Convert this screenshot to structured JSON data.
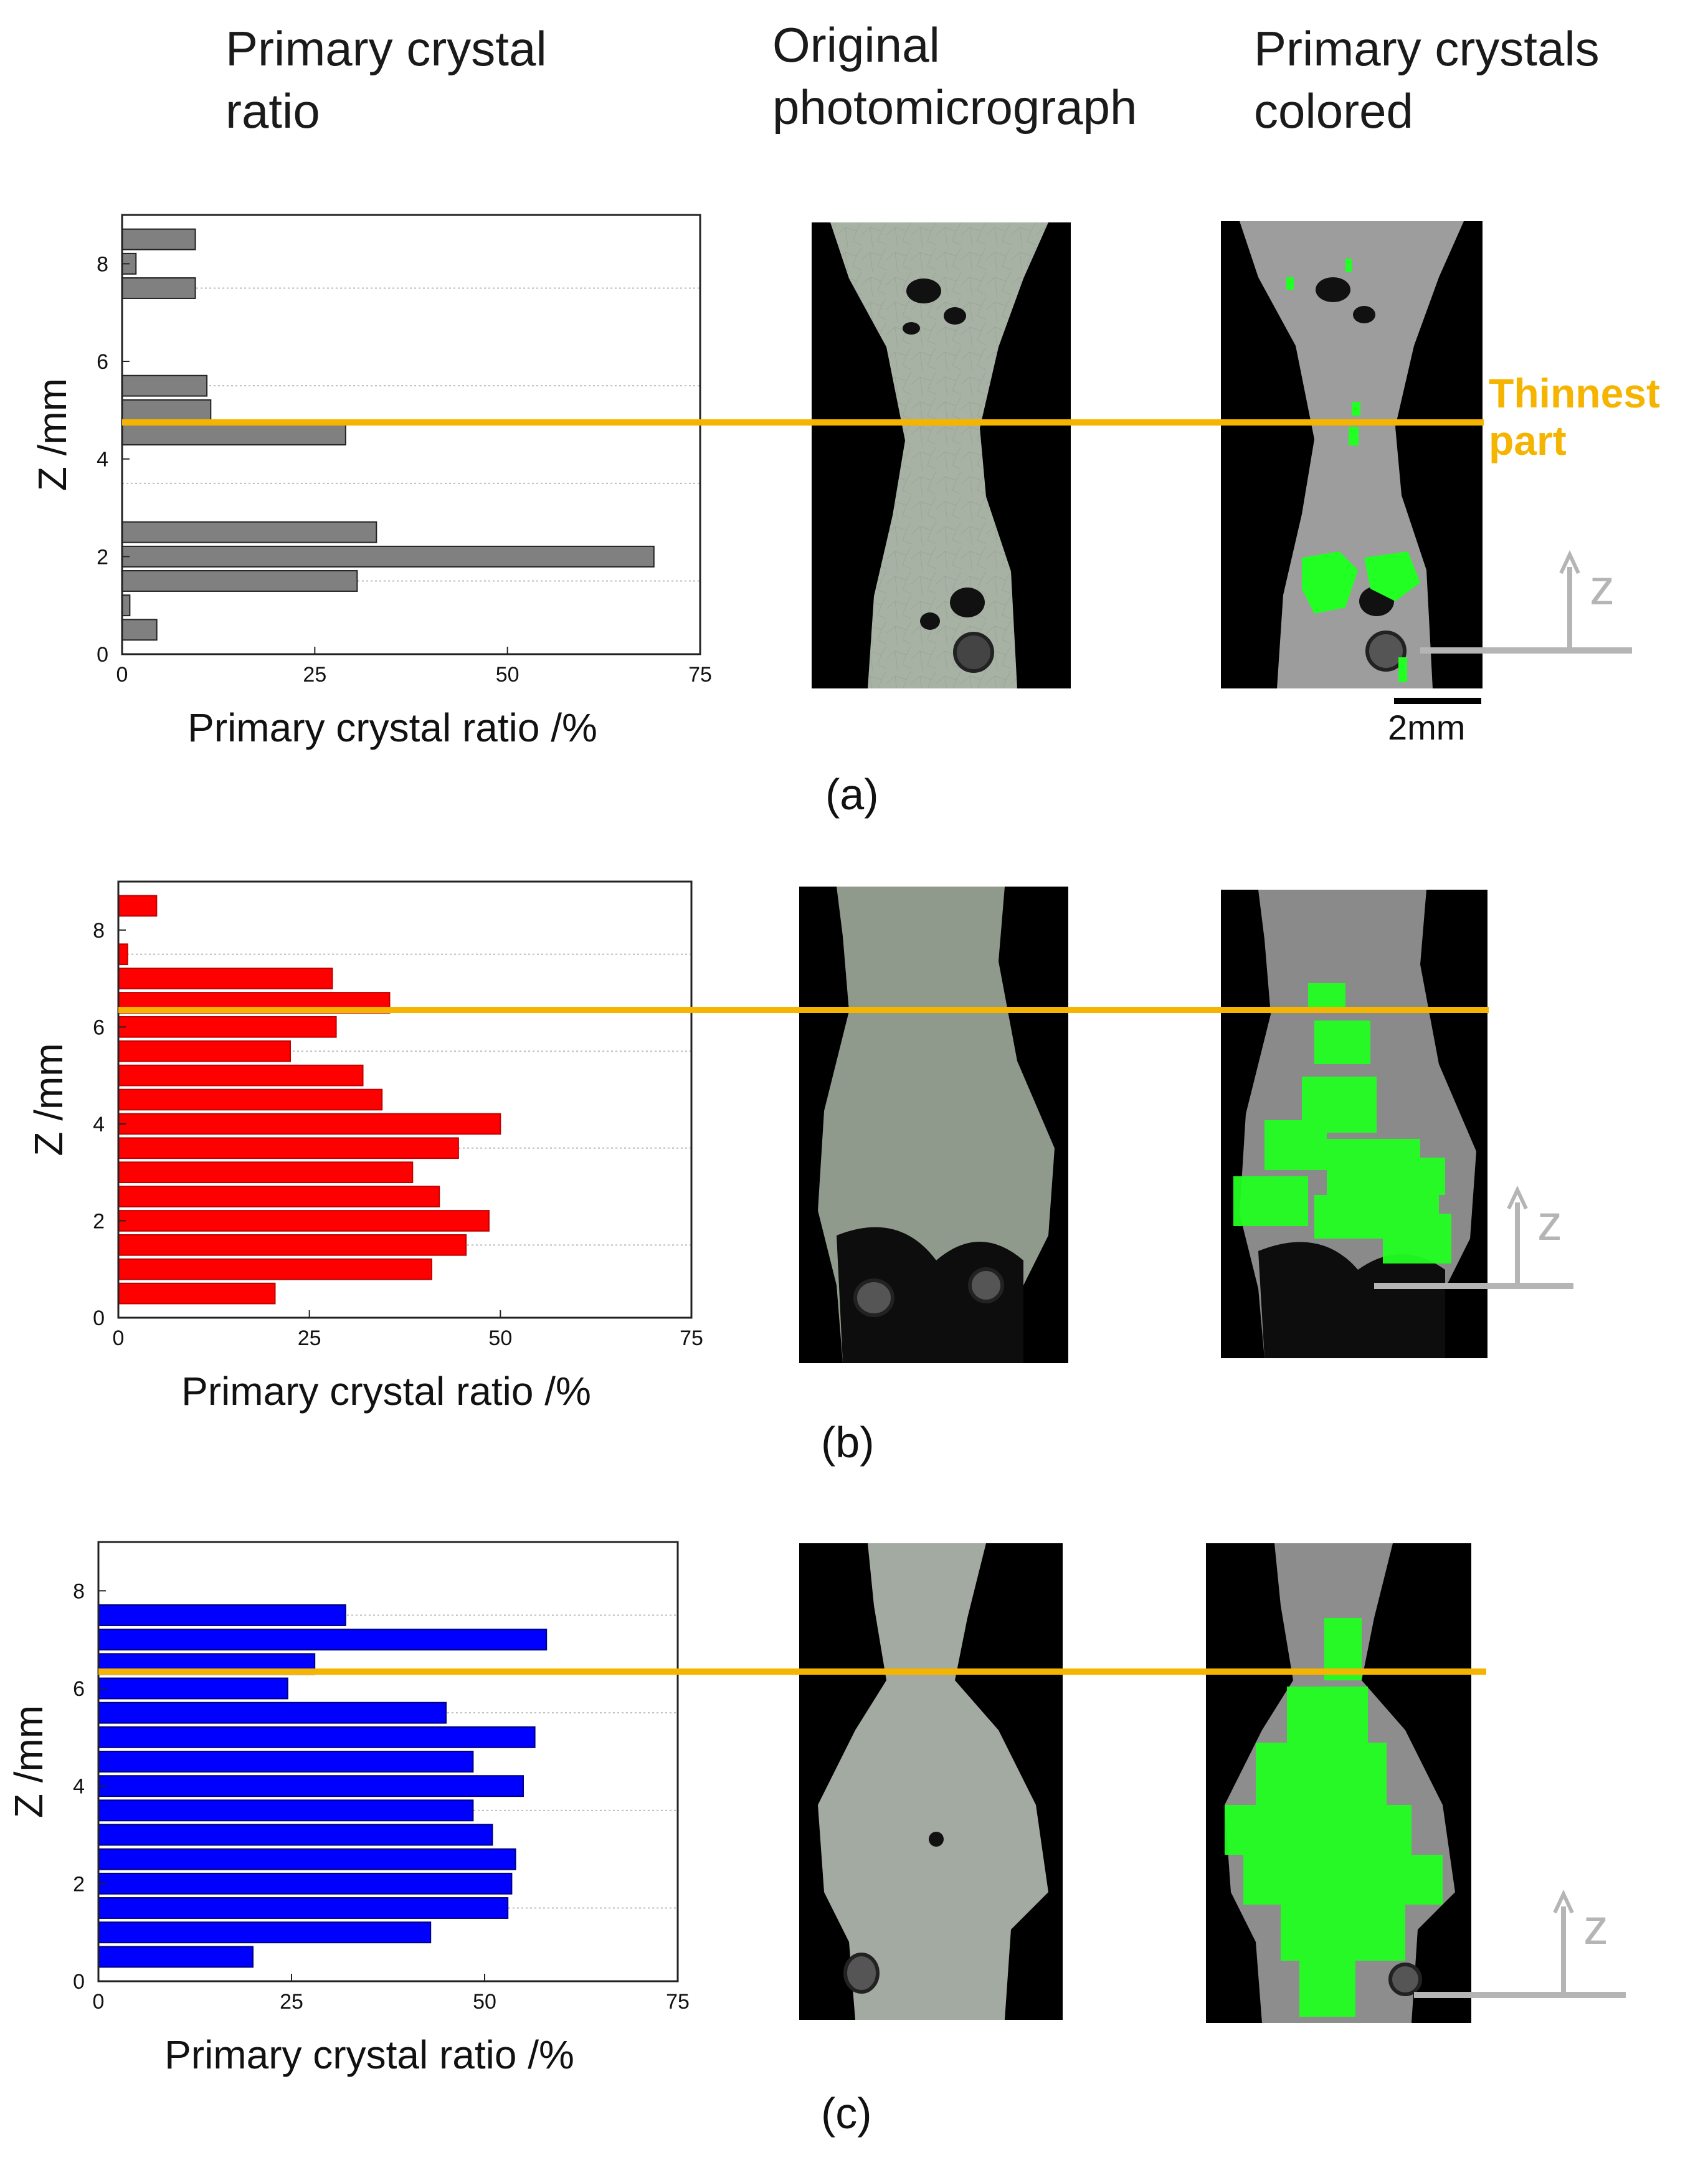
{
  "headers": {
    "col1": "Primary crystal\nratio",
    "col2": "Original\nphotomicrograph",
    "col3": "Primary crystals\ncolored"
  },
  "thinnest_label": "Thinnest\npart",
  "scale_bar_label": "2mm",
  "axis_letter": "z",
  "panel_labels": [
    "(a)",
    "(b)",
    "(c)"
  ],
  "colors": {
    "thinnest": "#f5b400",
    "series_a": "#808080",
    "series_b": "#ff0000",
    "series_c": "#0000ff",
    "crystal": "#22ff22",
    "axis_arrow": "#b5b5b5"
  },
  "chart_data": [
    {
      "type": "bar",
      "orientation": "horizontal",
      "xlabel": "Primary crystal ratio /%",
      "ylabel": "Z /mm",
      "xlim": [
        0,
        75
      ],
      "ylim": [
        0,
        9
      ],
      "xticks": [
        0,
        25,
        50,
        75
      ],
      "yticks": [
        0,
        2,
        4,
        6,
        8
      ],
      "y": [
        0.5,
        1.0,
        1.5,
        2.0,
        2.5,
        4.5,
        5.0,
        5.5,
        7.5,
        8.0,
        8.5
      ],
      "values": [
        4.5,
        1.0,
        30.5,
        69,
        33,
        29,
        11.5,
        11,
        9.5,
        1.8,
        9.5
      ],
      "thinnest_z": 4.75,
      "grid": "y dotted"
    },
    {
      "type": "bar",
      "orientation": "horizontal",
      "xlabel": "Primary crystal ratio /%",
      "ylabel": "Z /mm",
      "xlim": [
        0,
        75
      ],
      "ylim": [
        0,
        9
      ],
      "xticks": [
        0,
        25,
        50,
        75
      ],
      "yticks": [
        0,
        2,
        4,
        6,
        8
      ],
      "y": [
        0.5,
        1.0,
        1.5,
        2.0,
        2.5,
        3.0,
        3.5,
        4.0,
        4.5,
        5.0,
        5.5,
        6.0,
        6.5,
        7.0,
        7.5,
        8.5
      ],
      "values": [
        20.5,
        41,
        45.5,
        48.5,
        42,
        38.5,
        44.5,
        50,
        34.5,
        32,
        22.5,
        28.5,
        35.5,
        28,
        1.2,
        5
      ],
      "thinnest_z": 6.35,
      "grid": "y dotted"
    },
    {
      "type": "bar",
      "orientation": "horizontal",
      "xlabel": "Primary crystal ratio /%",
      "ylabel": "Z /mm",
      "xlim": [
        0,
        75
      ],
      "ylim": [
        0,
        9
      ],
      "xticks": [
        0,
        25,
        50,
        75
      ],
      "yticks": [
        0,
        2,
        4,
        6,
        8
      ],
      "y": [
        0.5,
        1.0,
        1.5,
        2.0,
        2.5,
        3.0,
        3.5,
        4.0,
        4.5,
        5.0,
        5.5,
        6.0,
        6.5,
        7.0,
        7.5
      ],
      "values": [
        20,
        43,
        53,
        53.5,
        54,
        51,
        48.5,
        55,
        48.5,
        56.5,
        45,
        24.5,
        28,
        58,
        32
      ],
      "thinnest_z": 6.35,
      "grid": "y dotted"
    }
  ]
}
